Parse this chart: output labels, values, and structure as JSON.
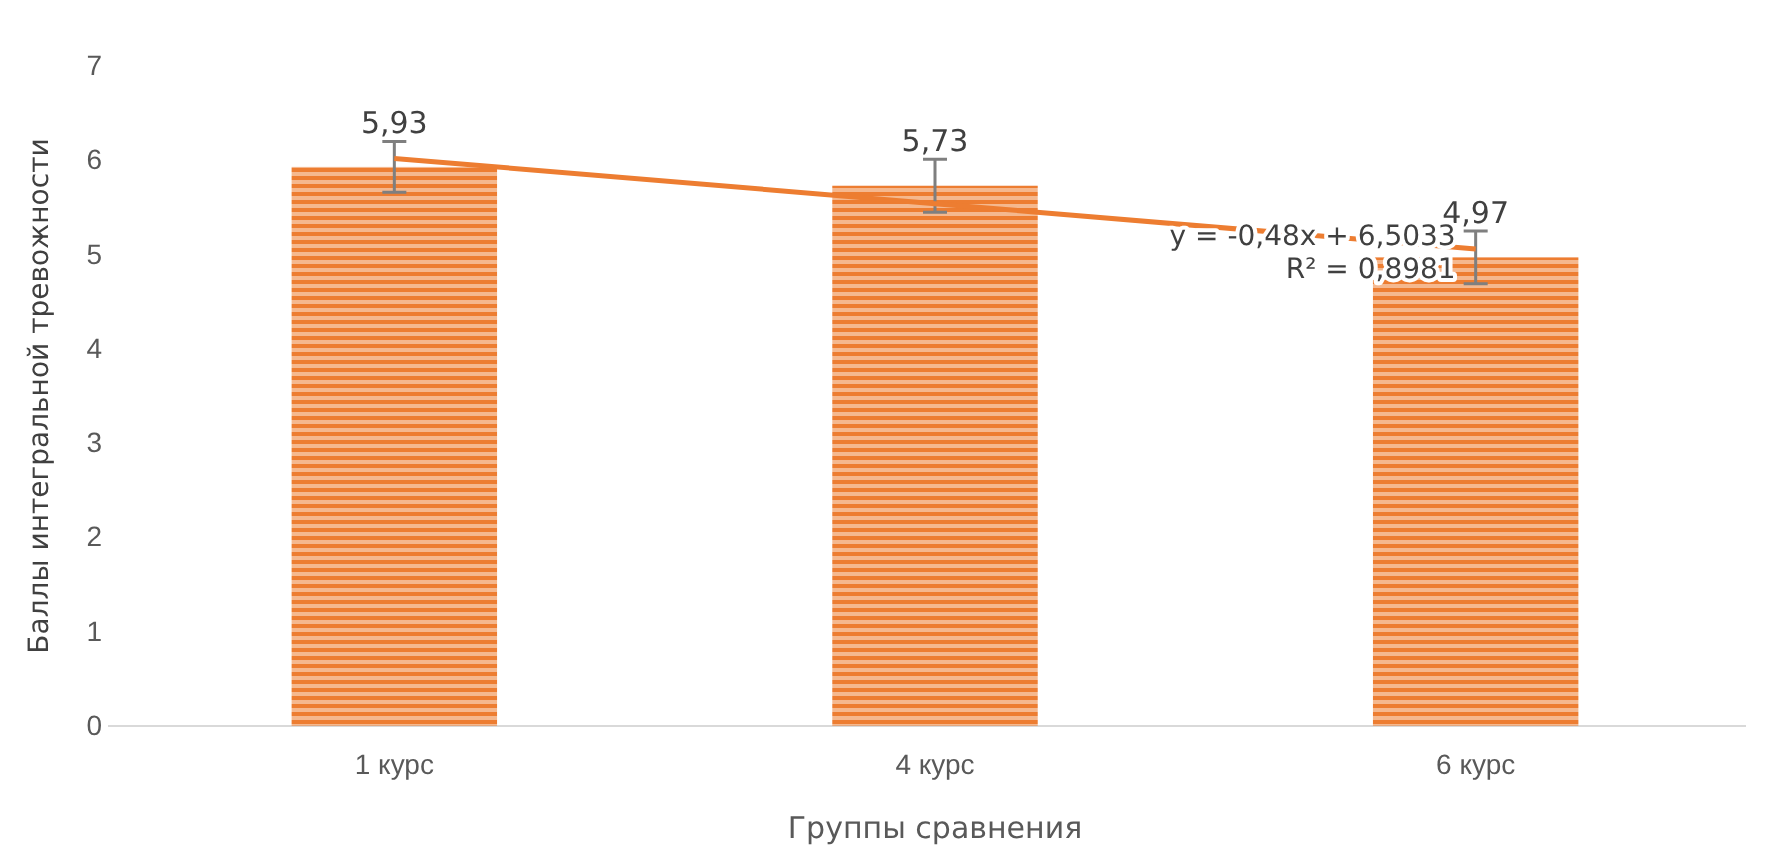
{
  "chart_data": {
    "type": "bar",
    "xlabel": "Группы сравнения",
    "ylabel": "Баллы интегральной тревожности",
    "categories": [
      "1 курс",
      "4 курс",
      "6 курс"
    ],
    "series": [
      {
        "color": "#ed7d31",
        "values": [
          5.93,
          5.73,
          4.97
        ],
        "errors": [
          0.27,
          0.28,
          0.28
        ],
        "value_labels": [
          "5,93",
          "5,73",
          "4,97"
        ]
      },
      {
        "type": "line",
        "color": "#ed7d31",
        "values": [
          6.02,
          5.54,
          5.06
        ],
        "marker": "none",
        "line_style": "solid"
      }
    ],
    "annotations": [
      {
        "text": "y = -0,48x + 6,5033",
        "x": "6 курс",
        "y": 5.1
      },
      {
        "text": "R² = 0,8981",
        "x": "6 курс",
        "y": 4.75
      }
    ],
    "ylim": [
      0,
      7
    ],
    "yticks": [
      0,
      1,
      2,
      3,
      4,
      5,
      6,
      7
    ],
    "grid": false
  }
}
